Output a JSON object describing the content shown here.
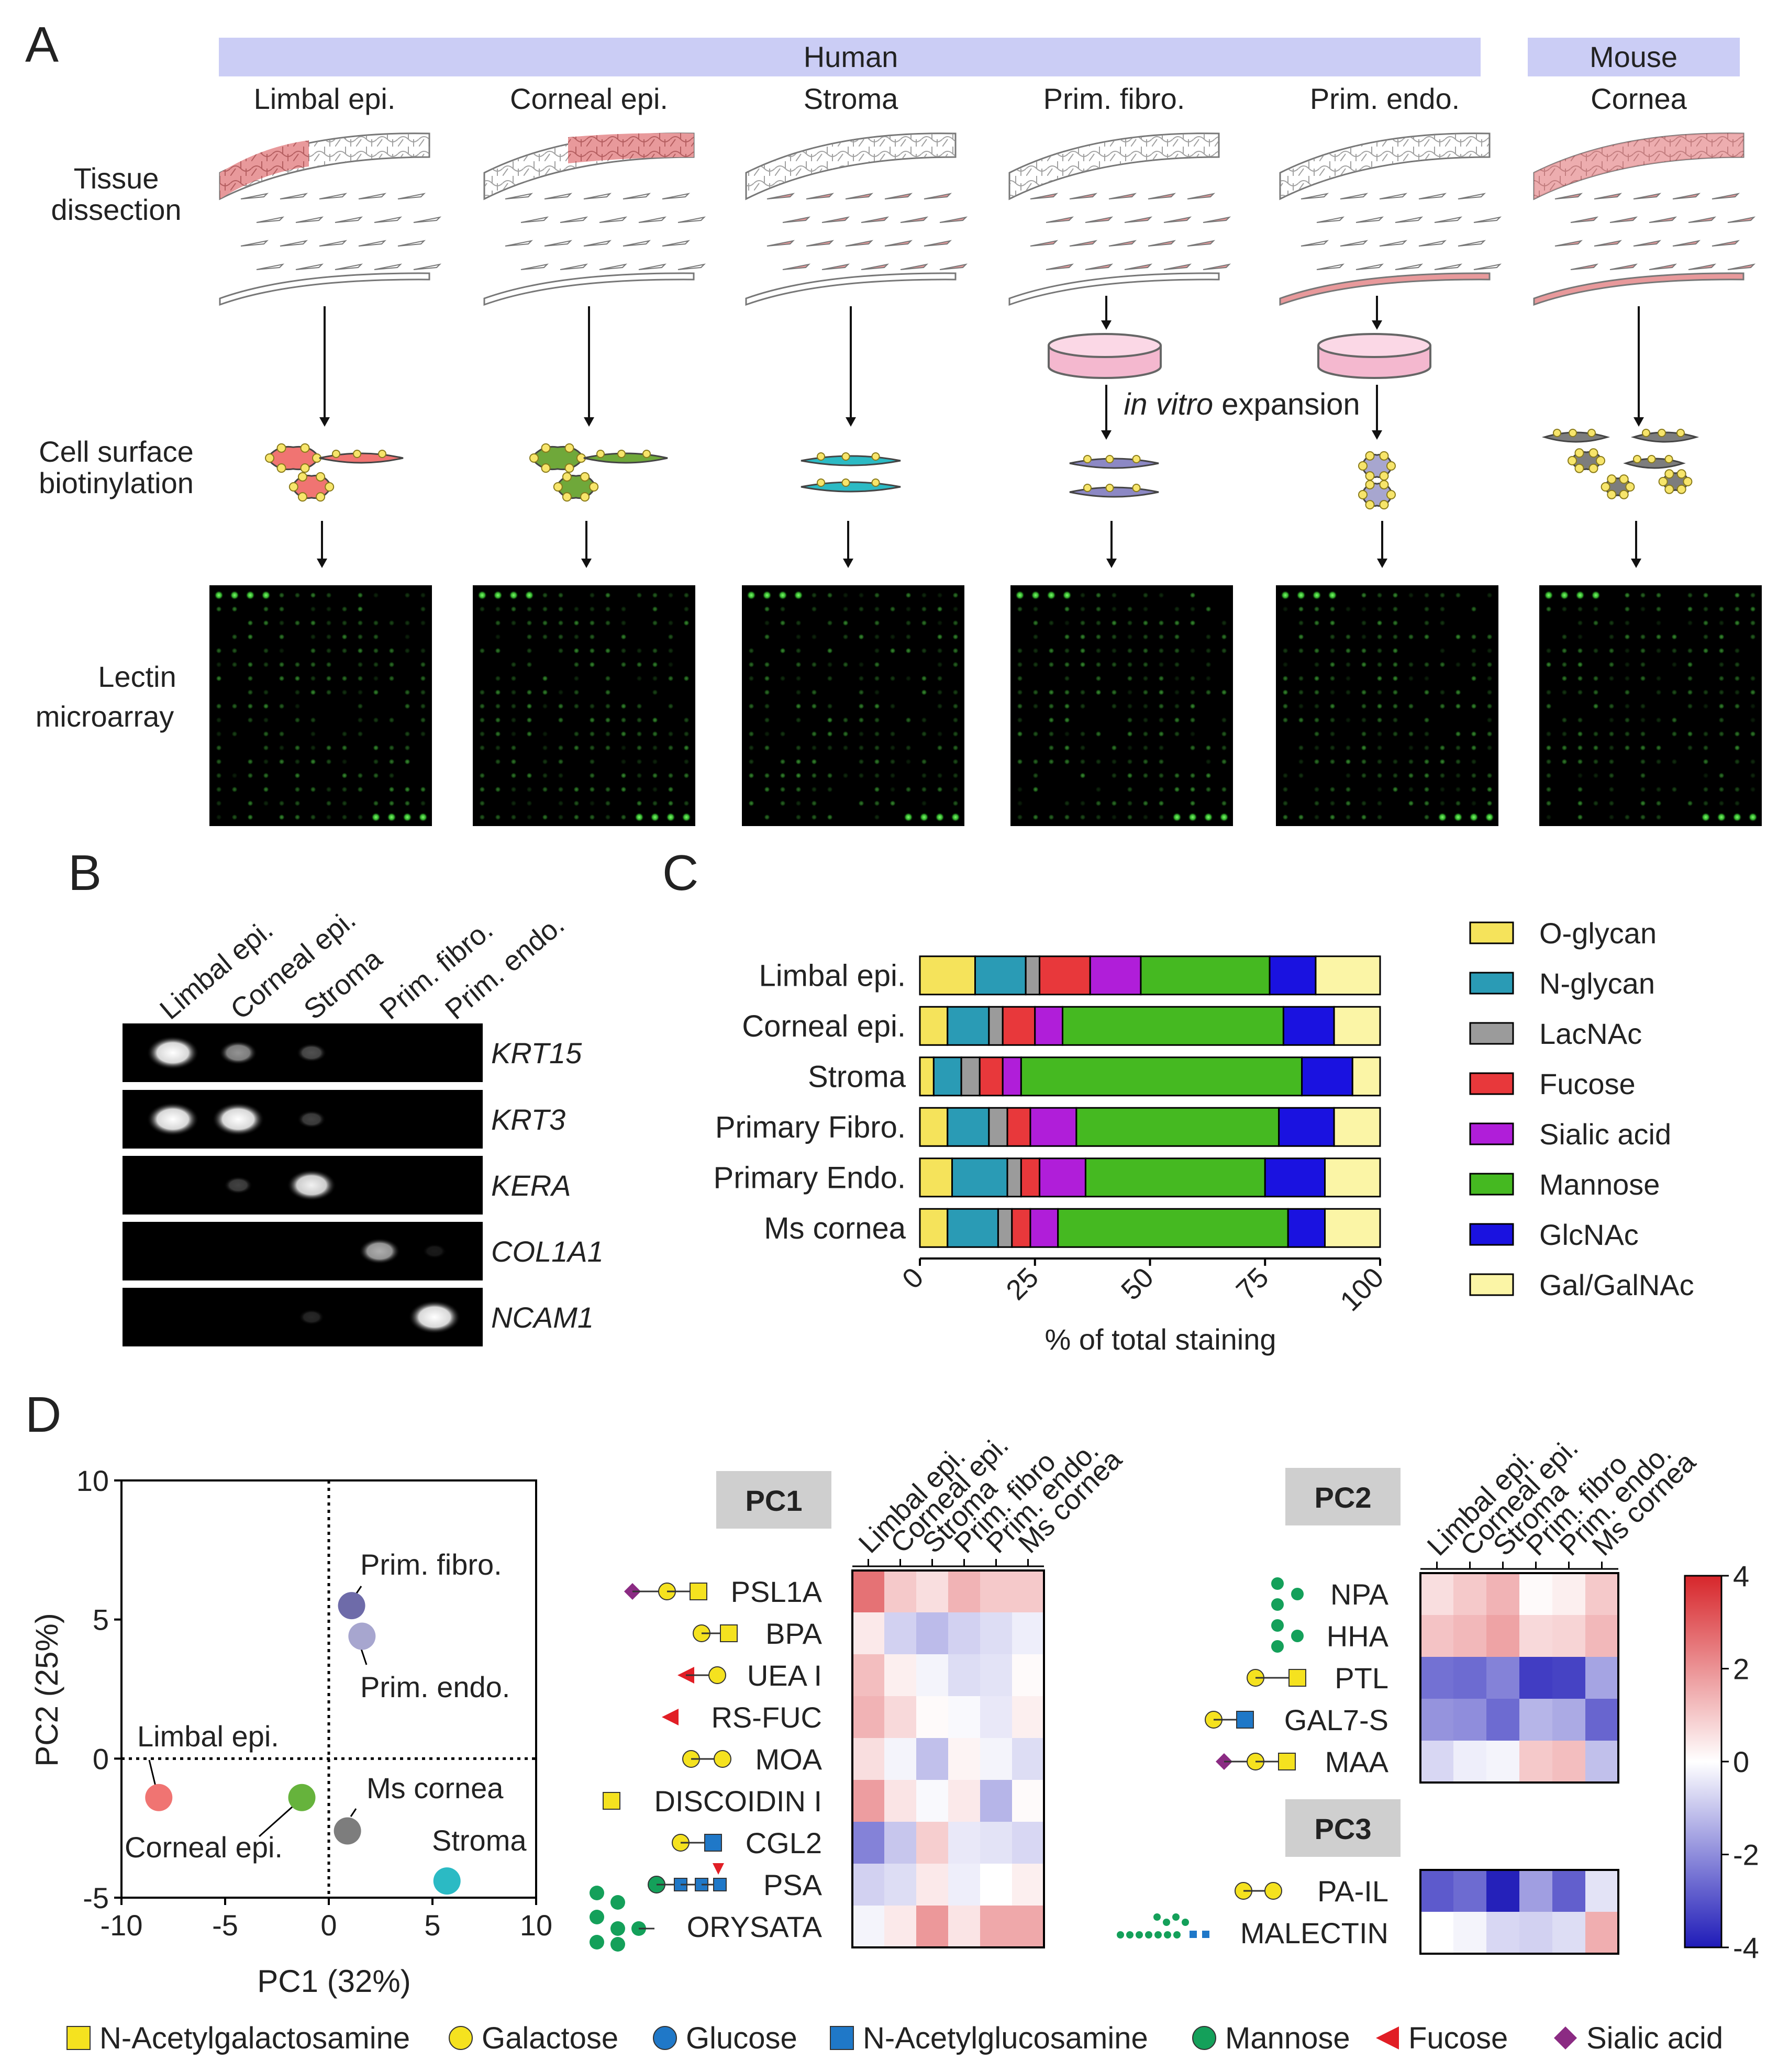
{
  "panelA": {
    "letter": "A",
    "human_label": "Human",
    "mouse_label": "Mouse",
    "columns": [
      "Limbal epi.",
      "Corneal epi.",
      "Stroma",
      "Prim. fibro.",
      "Prim. endo.",
      "Cornea"
    ],
    "row_labels": {
      "tissue": [
        "Tissue",
        "dissection"
      ],
      "biotin": [
        "Cell surface",
        "biotinylation"
      ],
      "lectin": [
        "Lectin",
        "microarray"
      ]
    },
    "expansion_italic": "in vitro",
    "expansion_rest": " expansion",
    "colors": {
      "header_band": "#cbcdf5",
      "pink": "#e8999b",
      "dish": "#f4b8cf"
    }
  },
  "panelB": {
    "letter": "B",
    "columns": [
      "Limbal epi.",
      "Corneal epi.",
      "Stroma",
      "Prim. fibro.",
      "Prim. endo."
    ],
    "genes": [
      "KRT15",
      "KRT3",
      "KERA",
      "COL1A1",
      "NCAM1"
    ],
    "band_intensity": [
      [
        1.0,
        0.55,
        0.3,
        0,
        0
      ],
      [
        1.0,
        1.0,
        0.25,
        0,
        0
      ],
      [
        0,
        0.25,
        0.9,
        0,
        0
      ],
      [
        0,
        0,
        0,
        0.65,
        0.1
      ],
      [
        0,
        0,
        0.15,
        0,
        1.0
      ]
    ]
  },
  "panelC": {
    "letter": "C",
    "chart_data": {
      "type": "bar",
      "orientation": "horizontal-stacked",
      "categories": [
        "Limbal epi.",
        "Corneal epi.",
        "Stroma",
        "Primary Fibro.",
        "Primary Endo.",
        "Ms cornea"
      ],
      "series": [
        {
          "name": "O-glycan",
          "color": "#f5e35b",
          "values": [
            12,
            6,
            3,
            6,
            7,
            6
          ]
        },
        {
          "name": "N-glycan",
          "color": "#2a9bb5",
          "values": [
            11,
            9,
            6,
            9,
            12,
            11
          ]
        },
        {
          "name": "LacNAc",
          "color": "#9b9b9b",
          "values": [
            3,
            3,
            4,
            4,
            3,
            3
          ]
        },
        {
          "name": "Fucose",
          "color": "#e8383b",
          "values": [
            11,
            7,
            5,
            5,
            4,
            4
          ]
        },
        {
          "name": "Sialic acid",
          "color": "#b01ed9",
          "values": [
            11,
            6,
            4,
            10,
            10,
            6
          ]
        },
        {
          "name": "Mannose",
          "color": "#45b921",
          "values": [
            28,
            48,
            61,
            44,
            39,
            50
          ]
        },
        {
          "name": "GlcNAc",
          "color": "#1a12e0",
          "values": [
            10,
            11,
            11,
            12,
            13,
            8
          ]
        },
        {
          "name": "Gal/GalNAc",
          "color": "#fbf5a6",
          "values": [
            14,
            10,
            6,
            10,
            12,
            12
          ]
        }
      ],
      "xlabel": "% of total staining",
      "xlim": [
        0,
        100
      ],
      "xticks": [
        "0",
        "25",
        "50",
        "75",
        "100"
      ]
    }
  },
  "panelD": {
    "letter": "D",
    "chart_data": [
      {
        "type": "scatter",
        "xlabel": "PC1 (32%)",
        "ylabel": "PC2 (25%)",
        "xlim": [
          -10,
          10
        ],
        "ylim": [
          -5,
          10
        ],
        "xticks": [
          "-10",
          "-5",
          "0",
          "5",
          "10"
        ],
        "yticks": [
          "-5",
          "0",
          "5",
          "10"
        ],
        "points": [
          {
            "label": "Limbal epi.",
            "x": -8.2,
            "y": -1.4,
            "color": "#f07472"
          },
          {
            "label": "Corneal epi.",
            "x": -1.3,
            "y": -1.4,
            "color": "#66b33c"
          },
          {
            "label": "Stroma",
            "x": 5.7,
            "y": -4.4,
            "color": "#2bbac4"
          },
          {
            "label": "Prim. fibro.",
            "x": 1.1,
            "y": 5.5,
            "color": "#6e6ba9"
          },
          {
            "label": "Prim. endo.",
            "x": 1.6,
            "y": 4.4,
            "color": "#a7a6cf"
          },
          {
            "label": "Ms cornea",
            "x": 0.9,
            "y": -2.6,
            "color": "#7d7d7d"
          }
        ]
      },
      {
        "type": "heatmap",
        "title": "PC1",
        "columns": [
          "Limbal epi.",
          "Corneal epi.",
          "Stroma",
          "Prim. fibro",
          "Prim. endo.",
          "Ms cornea"
        ],
        "rows": [
          "PSL1A",
          "BPA",
          "UEA I",
          "RS-FUC",
          "MOA",
          "DISCOIDIN I",
          "CGL2",
          "PSA",
          "ORYSATA"
        ],
        "values": [
          [
            2.6,
            1.0,
            0.6,
            1.4,
            1.0,
            1.0
          ],
          [
            0.4,
            -0.8,
            -1.2,
            -0.8,
            -0.6,
            -0.3
          ],
          [
            1.2,
            0.3,
            -0.2,
            -0.6,
            -0.5,
            0.1
          ],
          [
            1.4,
            0.7,
            0.1,
            -0.1,
            -0.4,
            0.3
          ],
          [
            0.6,
            -0.2,
            -1.1,
            0.2,
            -0.2,
            -0.6
          ],
          [
            1.8,
            0.5,
            -0.1,
            0.4,
            -1.3,
            0.1
          ],
          [
            -2.2,
            -1.0,
            0.9,
            -0.4,
            -0.5,
            -0.7
          ],
          [
            -0.8,
            -0.6,
            0.4,
            -0.3,
            0.0,
            0.3
          ],
          [
            -0.2,
            0.4,
            1.9,
            0.5,
            1.6,
            1.6
          ]
        ]
      },
      {
        "type": "heatmap",
        "title": "PC2",
        "columns": [
          "Limbal epi.",
          "Corneal epi.",
          "Stroma",
          "Prim. fibro",
          "Prim. endo.",
          "Ms cornea"
        ],
        "rows": [
          "NPA",
          "HHA",
          "PTL",
          "GAL7-S",
          "MAA"
        ],
        "values": [
          [
            0.6,
            1.0,
            1.4,
            0.1,
            0.3,
            1.0
          ],
          [
            1.1,
            1.3,
            1.7,
            0.7,
            0.8,
            1.3
          ],
          [
            -2.5,
            -2.6,
            -2.2,
            -3.4,
            -3.3,
            -1.6
          ],
          [
            -1.9,
            -2.0,
            -2.6,
            -1.3,
            -1.5,
            -2.7
          ],
          [
            -0.7,
            -0.3,
            -0.2,
            1.0,
            1.2,
            -1.1
          ]
        ]
      },
      {
        "type": "heatmap",
        "title": "PC3",
        "columns": [
          "Limbal epi.",
          "Corneal epi.",
          "Stroma",
          "Prim. fibro",
          "Prim. endo.",
          "Ms cornea"
        ],
        "rows": [
          "PA-IL",
          "MALECTIN"
        ],
        "values": [
          [
            -2.9,
            -2.6,
            -3.9,
            -1.7,
            -2.8,
            -0.5
          ],
          [
            0.0,
            -0.2,
            -0.7,
            -0.8,
            -0.6,
            1.5
          ]
        ],
        "colorbar": {
          "min": -4,
          "max": 4,
          "ticks": [
            "4",
            "2",
            "0",
            "-2",
            "-4"
          ]
        }
      }
    ]
  },
  "legend_sugars": [
    {
      "name": "N-Acetylgalactosamine",
      "shape": "square",
      "color": "#f5e21f"
    },
    {
      "name": "Galactose",
      "shape": "circle",
      "color": "#f5e21f"
    },
    {
      "name": "Glucose",
      "shape": "circle",
      "color": "#1f78c8"
    },
    {
      "name": "N-Acetylglucosamine",
      "shape": "square",
      "color": "#1f78c8"
    },
    {
      "name": "Mannose",
      "shape": "circle",
      "color": "#14a05a"
    },
    {
      "name": "Fucose",
      "shape": "triangle",
      "color": "#e11e25"
    },
    {
      "name": "Sialic acid",
      "shape": "diamond",
      "color": "#8b2b83"
    }
  ]
}
